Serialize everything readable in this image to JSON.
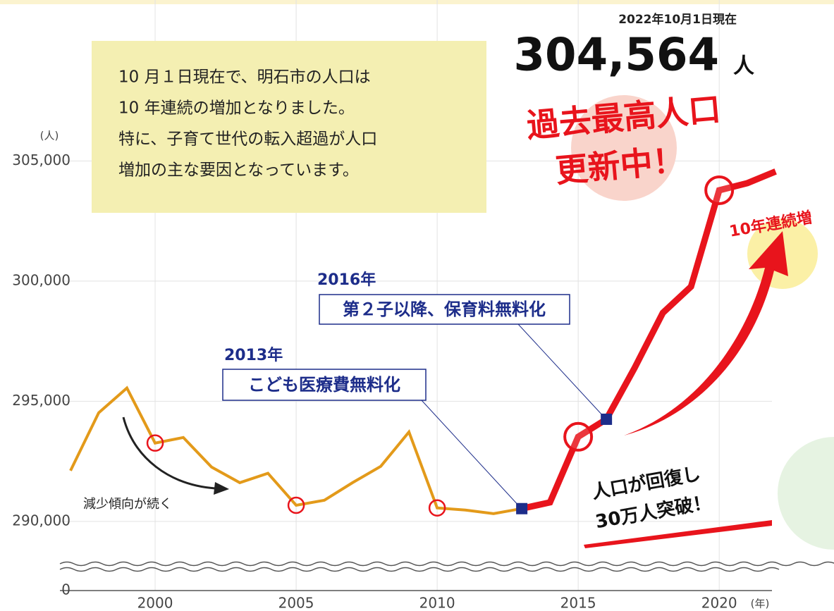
{
  "chart_data": {
    "type": "line",
    "date_note": "2022年10月1日現在",
    "headline_number": "304,564",
    "headline_unit": "人",
    "note_lines": [
      "10 月１日現在で、明石市の人口は",
      "10 年連続の増加となりました。",
      "特に、子育て世代の転入超過が人口",
      "増加の主な要因となっています。"
    ],
    "record_lines": [
      "過去最高人口",
      "更新中！"
    ],
    "streak_label": "10年連続増",
    "callouts": [
      {
        "year": "2013年",
        "text": "こども医療費無料化"
      },
      {
        "year": "2016年",
        "text": "第２子以降、保育料無料化"
      }
    ],
    "decline_label": "減少傾向が続く",
    "recovery_lines": [
      "人口が回復し",
      "30万人突破！"
    ],
    "y_unit": "(人)",
    "x_unit": "(年)",
    "x": [
      1997,
      1998,
      1999,
      2000,
      2001,
      2002,
      2003,
      2004,
      2005,
      2006,
      2007,
      2008,
      2009,
      2010,
      2011,
      2012,
      2013,
      2014,
      2015,
      2016,
      2017,
      2018,
      2019,
      2020,
      2021,
      2022
    ],
    "series": [
      {
        "color": "#e39a1a",
        "values": [
          292110,
          294520,
          295550,
          293260,
          293490,
          292260,
          291610,
          292000,
          290670,
          290880,
          291610,
          292290,
          293720,
          290560,
          290470,
          290320,
          290530,
          null,
          null,
          null,
          null,
          null,
          null,
          null,
          null,
          null
        ]
      },
      {
        "color": "#e8141c",
        "values": [
          null,
          null,
          null,
          null,
          null,
          null,
          null,
          null,
          null,
          null,
          null,
          null,
          null,
          null,
          null,
          null,
          290530,
          290790,
          293520,
          294250,
          296390,
          298680,
          299770,
          303780,
          304080,
          304564
        ]
      }
    ],
    "xlim": [
      1994.5,
      2024.07
    ],
    "ylim": [
      288000,
      311700
    ],
    "xticks": [
      2000,
      2005,
      2010,
      2015,
      2020
    ],
    "yticks": [
      0,
      {
        "value": 290000,
        "label": "290,000"
      },
      {
        "value": 295000,
        "label": "295,000"
      },
      {
        "value": 300000,
        "label": "300,000"
      },
      {
        "value": 305000,
        "label": "305,000"
      }
    ],
    "grid": true
  }
}
